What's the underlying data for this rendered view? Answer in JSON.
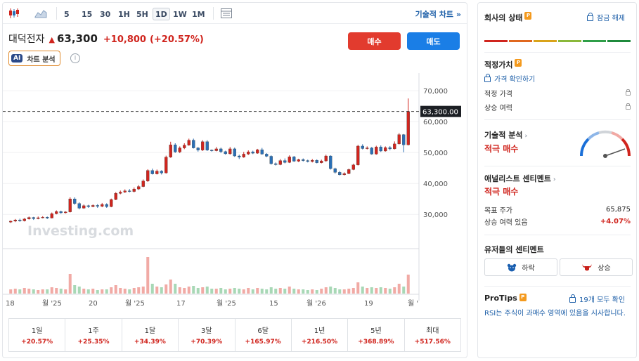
{
  "toolbar": {
    "timeframes": [
      "5",
      "15",
      "30",
      "1H",
      "5H",
      "1D",
      "1W",
      "1M"
    ],
    "active_timeframe": "1D",
    "technical_chart_label": "기술적 차트",
    "technical_chart_chevron": "»"
  },
  "stock": {
    "name": "대덕전자",
    "arrow": "▲",
    "price": "63,300",
    "change": "+10,800",
    "change_pct": "(+20.57%)"
  },
  "actions": {
    "buy_label": "매수",
    "sell_label": "매도",
    "ai_badge": "AI",
    "ai_label": "차트 분석",
    "info": "i"
  },
  "chart_data": {
    "type": "candlestick",
    "y_ticks": [
      "70,000",
      "60,000",
      "50,000",
      "40,000",
      "30,000"
    ],
    "y_tick_values": [
      70000,
      60000,
      50000,
      40000,
      30000
    ],
    "ylim": [
      23000,
      73000
    ],
    "current_price_label": "63,300.00",
    "current_price": 63300,
    "x_labels": [
      "18",
      "월 '25",
      "20",
      "월 '25",
      "17",
      "월 '25",
      "15",
      "월 '26",
      "19",
      "월 '"
    ],
    "watermark": "Investing.com",
    "up_color": "#d0251e",
    "down_color": "#2a6fb5",
    "volume_up_color": "#f1aaa5",
    "volume_down_color": "#a8d8b6",
    "candles": [
      [
        27500,
        27800,
        27200,
        28000
      ],
      [
        27800,
        28200,
        27500,
        28500
      ],
      [
        28200,
        27900,
        27600,
        28600
      ],
      [
        27900,
        28500,
        27700,
        28800
      ],
      [
        28500,
        29000,
        28300,
        29300
      ],
      [
        29000,
        28600,
        28200,
        29200
      ],
      [
        28600,
        28900,
        28400,
        29300
      ],
      [
        28900,
        29100,
        28700,
        29400
      ],
      [
        29100,
        28800,
        28500,
        29300
      ],
      [
        28800,
        30200,
        28700,
        30600
      ],
      [
        30200,
        30900,
        30000,
        31300
      ],
      [
        30900,
        30500,
        30200,
        31200
      ],
      [
        30500,
        30800,
        30300,
        31000
      ],
      [
        30800,
        35000,
        30600,
        35500
      ],
      [
        35000,
        33500,
        33100,
        35500
      ],
      [
        33500,
        32000,
        31600,
        33900
      ],
      [
        32000,
        32800,
        31800,
        33200
      ],
      [
        32800,
        32500,
        32100,
        33100
      ],
      [
        32500,
        32900,
        32300,
        33200
      ],
      [
        32900,
        32600,
        32100,
        33300
      ],
      [
        32600,
        33200,
        32300,
        33700
      ],
      [
        33200,
        32500,
        32100,
        33600
      ],
      [
        32500,
        34800,
        32300,
        35100
      ],
      [
        34800,
        36800,
        34600,
        37200
      ],
      [
        36800,
        37200,
        36500,
        37700
      ],
      [
        37200,
        37600,
        36900,
        38100
      ],
      [
        37600,
        37400,
        37100,
        38200
      ],
      [
        37400,
        38200,
        37100,
        38700
      ],
      [
        38200,
        39000,
        37900,
        39500
      ],
      [
        39000,
        40800,
        38800,
        41300
      ],
      [
        40800,
        44200,
        40500,
        44600
      ],
      [
        44200,
        43100,
        42900,
        44800
      ],
      [
        43100,
        44000,
        42900,
        44500
      ],
      [
        44000,
        43400,
        42900,
        44300
      ],
      [
        43400,
        48500,
        43200,
        49000
      ],
      [
        48500,
        52500,
        48300,
        53500
      ],
      [
        52500,
        50200,
        49900,
        53000
      ],
      [
        50200,
        51500,
        49800,
        52000
      ],
      [
        51500,
        52400,
        51100,
        53000
      ],
      [
        52400,
        54000,
        52200,
        54500
      ],
      [
        54000,
        51500,
        51300,
        54500
      ],
      [
        51500,
        50800,
        50300,
        51800
      ],
      [
        50800,
        53500,
        50500,
        54000
      ],
      [
        53500,
        50800,
        50500,
        54000
      ],
      [
        50800,
        50600,
        50300,
        51000
      ],
      [
        50600,
        51200,
        50400,
        51800
      ],
      [
        51200,
        50300,
        49800,
        51600
      ],
      [
        50300,
        49600,
        49300,
        50600
      ],
      [
        49600,
        51200,
        49300,
        51800
      ],
      [
        51200,
        48900,
        48600,
        51600
      ],
      [
        48900,
        48500,
        47900,
        49300
      ],
      [
        48500,
        49500,
        48300,
        50200
      ],
      [
        49500,
        50200,
        49200,
        50700
      ],
      [
        50200,
        49800,
        49500,
        50600
      ],
      [
        49800,
        50900,
        49600,
        51200
      ],
      [
        50900,
        49500,
        49300,
        51500
      ],
      [
        49500,
        48800,
        48500,
        49800
      ],
      [
        48800,
        46400,
        46100,
        49100
      ],
      [
        46400,
        46100,
        45800,
        46800
      ],
      [
        46100,
        47400,
        45900,
        47900
      ],
      [
        47400,
        46800,
        46500,
        48100
      ],
      [
        46800,
        48600,
        46600,
        49100
      ],
      [
        48600,
        47200,
        47000,
        48900
      ],
      [
        47200,
        47700,
        46900,
        48000
      ],
      [
        47700,
        47400,
        47100,
        48100
      ],
      [
        47400,
        47100,
        46800,
        47700
      ],
      [
        47100,
        47500,
        46800,
        47900
      ],
      [
        47500,
        46700,
        46500,
        47800
      ],
      [
        46700,
        47300,
        46500,
        47700
      ],
      [
        47300,
        48900,
        47000,
        49300
      ],
      [
        48900,
        44800,
        44500,
        49100
      ],
      [
        44800,
        43600,
        43200,
        45100
      ],
      [
        43600,
        42800,
        42600,
        44000
      ],
      [
        42800,
        43200,
        42600,
        43600
      ],
      [
        43200,
        44500,
        43000,
        44800
      ],
      [
        44500,
        46000,
        44300,
        46400
      ],
      [
        46000,
        52100,
        45800,
        52500
      ],
      [
        52100,
        51300,
        51000,
        52700
      ],
      [
        51300,
        51500,
        51000,
        52000
      ],
      [
        51500,
        49500,
        49300,
        51800
      ],
      [
        49500,
        51800,
        49300,
        52200
      ],
      [
        51800,
        50500,
        50200,
        52300
      ],
      [
        50500,
        51600,
        50300,
        52000
      ],
      [
        51600,
        51200,
        50700,
        52100
      ],
      [
        51200,
        52800,
        51000,
        53600
      ],
      [
        52800,
        55800,
        52600,
        56300
      ],
      [
        55800,
        52500,
        50100,
        56000
      ],
      [
        52500,
        63300,
        52300,
        67500
      ]
    ],
    "volumes": [
      6,
      7,
      6,
      8,
      7,
      6,
      5,
      6,
      6,
      9,
      8,
      7,
      6,
      28,
      12,
      10,
      7,
      6,
      7,
      5,
      6,
      6,
      9,
      12,
      8,
      7,
      6,
      8,
      9,
      10,
      52,
      14,
      10,
      9,
      13,
      20,
      14,
      9,
      8,
      10,
      11,
      8,
      9,
      10,
      7,
      7,
      8,
      6,
      7,
      8,
      7,
      6,
      8,
      6,
      8,
      7,
      6,
      9,
      7,
      8,
      7,
      10,
      7,
      6,
      6,
      5,
      6,
      5,
      7,
      9,
      10,
      8,
      6,
      6,
      7,
      8,
      16,
      10,
      8,
      9,
      8,
      9,
      8,
      7,
      9,
      14,
      10,
      27
    ]
  },
  "periods": [
    {
      "label": "1일",
      "value": "+20.57%"
    },
    {
      "label": "1주",
      "value": "+25.35%"
    },
    {
      "label": "1달",
      "value": "+34.39%"
    },
    {
      "label": "3달",
      "value": "+70.39%"
    },
    {
      "label": "6달",
      "value": "+165.97%"
    },
    {
      "label": "1년",
      "value": "+216.50%"
    },
    {
      "label": "5년",
      "value": "+368.89%"
    },
    {
      "label": "최대",
      "value": "+517.56%"
    }
  ],
  "sidebar": {
    "company_status": "회사의 상태",
    "pro_badge": "P",
    "unlock": "잠금 해제",
    "status_colors": [
      "#d0251e",
      "#e0681f",
      "#d9a31a",
      "#8ab83a",
      "#2f9e48",
      "#1f8a3c"
    ],
    "fair_value": {
      "title": "적정가치",
      "check_price": "가격 확인하기",
      "rows": [
        {
          "label": "적정 가격"
        },
        {
          "label": "상승 여력"
        }
      ]
    },
    "technical": {
      "title": "기술적 분석",
      "chevron": "›",
      "value": "적극 매수"
    },
    "analyst": {
      "title": "애널리스트 센티멘트",
      "chevron": "›",
      "value": "적극 매수",
      "target_label": "목표 주가",
      "target_value": "65,875",
      "upside_label": "상승 여력 있음",
      "upside_value": "+4.07%"
    },
    "users": {
      "title": "유저들의 센티멘트",
      "bear": "하락",
      "bull": "상승"
    },
    "protips": {
      "title": "ProTips",
      "count_link": "19개 모두 확인",
      "tip": "RSI는 주식이 과매수 영역에 있음을 시사합니다."
    }
  }
}
